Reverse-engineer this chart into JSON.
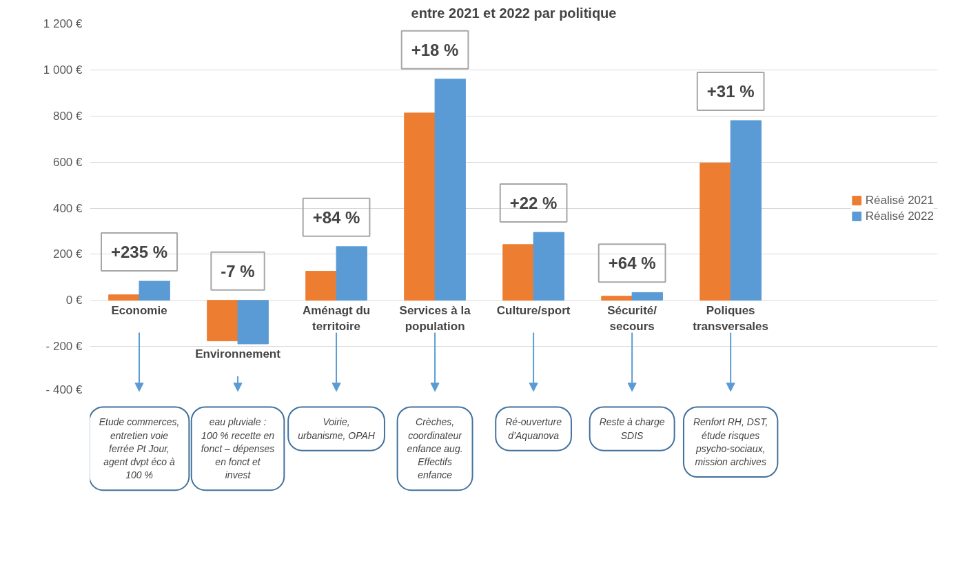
{
  "chart_data": {
    "type": "bar",
    "title": "entre 2021 et 2022 par politique",
    "categories": [
      "Economie",
      "Environnement",
      "Aménagt du\nterritoire",
      "Services à la\npopulation",
      "Culture/sport",
      "Sécurité/\nsecours",
      "Poliques\ntransversales"
    ],
    "series": [
      {
        "name": "Réalisé 2021",
        "color": "#ed7d31",
        "values": [
          24,
          -176,
          126,
          813,
          242,
          18,
          596
        ]
      },
      {
        "name": "Réalisé 2022",
        "color": "#5b9bd5",
        "values": [
          83,
          -189,
          233,
          960,
          295,
          34,
          780
        ]
      }
    ],
    "ylim": [
      -400,
      1200
    ],
    "yticks": [
      {
        "value": -400,
        "label": "- 400 €"
      },
      {
        "value": -200,
        "label": "- 200 €"
      },
      {
        "value": 0,
        "label": "0 €"
      },
      {
        "value": 200,
        "label": "200 €"
      },
      {
        "value": 400,
        "label": "400 €"
      },
      {
        "value": 600,
        "label": "600 €"
      },
      {
        "value": 800,
        "label": "800 €"
      },
      {
        "value": 1000,
        "label": "1 000 €"
      },
      {
        "value": 1200,
        "label": "1 200 €"
      }
    ],
    "grid": "y",
    "legend": "right",
    "annotations": [
      "+235 %",
      "-7 %",
      "+84 %",
      "+18 %",
      "+22 %",
      "+64 %",
      "+31 %",
      "Etude commerces, entretien voie ferrée Pt Jour, agent dvpt éco à 100 %",
      "eau pluviale : 100 % recette en fonct – dépenses en fonct et invest",
      "Voirie, urbanisme, OPAH",
      "Crèches, coordinateur enfance aug. Effectifs enfance",
      "Ré-ouverture d’Aquanova",
      "Reste à charge SDIS",
      "Renfort RH, DST, étude risques psycho-sociaux, mission archives"
    ]
  }
}
